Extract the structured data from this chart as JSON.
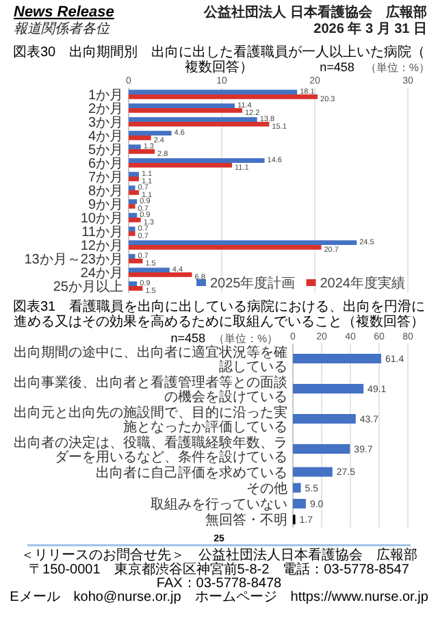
{
  "chart_data": [
    {
      "type": "bar",
      "orientation": "horizontal",
      "title": "図表30　出向期間別　出向に出した看護職員が一人以上いた病院（複数回答）",
      "annotations": [
        "News Release",
        "報道関係者各位",
        "公益社団法人 日本看護協会　広報部",
        "2026 年 3 月 31 日",
        "n=458",
        "（単位：%）"
      ],
      "categories": [
        "1か月",
        "2か月",
        "3か月",
        "4か月",
        "5か月",
        "6か月",
        "7か月",
        "8か月",
        "9か月",
        "10か月",
        "11か月",
        "12か月",
        "13か月～23か月",
        "24か月",
        "25か月以上"
      ],
      "series": [
        {
          "name": "2025年度計画",
          "color": "#4472c4",
          "values": [
            18.1,
            11.4,
            13.8,
            4.6,
            1.3,
            14.6,
            1.1,
            0.7,
            0.9,
            0.9,
            0.7,
            24.5,
            0.7,
            4.4,
            0.9
          ]
        },
        {
          "name": "2024年度実績",
          "color": "#d9312b",
          "values": [
            20.3,
            12.2,
            15.1,
            2.4,
            2.8,
            11.1,
            1.1,
            1.1,
            0.7,
            1.3,
            0.7,
            20.7,
            1.5,
            6.8,
            1.5
          ]
        }
      ],
      "xlim": [
        0,
        30
      ],
      "xticks": [
        0,
        10,
        20,
        30
      ],
      "grid": "x",
      "legend": "bottom right",
      "data_labels": true
    },
    {
      "type": "bar",
      "orientation": "horizontal",
      "title": "図表31　看護職員を出向に出している病院における、出向を円滑に進める又はその効果を高めるために取組んでいること（複数回答）",
      "annotations": [
        "n=458",
        "（単位：%）",
        "25",
        "＜リリースのお問合せ先＞　公益社団法人日本看護協会　広報部",
        "〒150-0001　東京都渋谷区神宮前5-8-2　電話：03-5778-8547　FAX：03-5778-8478",
        "Eメール　koho@nurse.or.jp　ホームページ　https://www.nurse.or.jp"
      ],
      "categories": [
        "出向期間の途中に、出向者に適宜状況等を確認している",
        "出向事業後、出向者と看護管理者等との面談の機会を設けている",
        "出向元と出向先の施設間で、目的に沿った実施となったか評価している",
        "出向者の決定は、役職、看護職経験年数、ラダーを用いるなど、条件を設けている",
        "出向者に自己評価を求めている",
        "その他",
        "取組みを行っていない",
        "無回答・不明"
      ],
      "values": [
        61.4,
        49.1,
        43.7,
        39.7,
        27.5,
        5.5,
        9.0,
        1.7
      ],
      "colors": [
        "#4472c4",
        "#4472c4",
        "#4472c4",
        "#4472c4",
        "#4472c4",
        "#4472c4",
        "#4472c4",
        "#000000"
      ],
      "value_labels": [
        "61.4",
        "49.1",
        "43.7",
        "39.7",
        "27.5",
        "5.5",
        "9.0",
        "1.7"
      ],
      "xlim": [
        0,
        80
      ],
      "xticks": [
        0,
        20,
        40,
        60,
        80
      ],
      "grid": "x"
    }
  ]
}
